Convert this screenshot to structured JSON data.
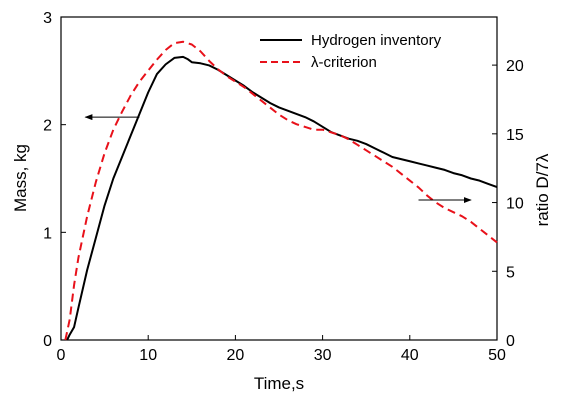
{
  "chart_data": {
    "type": "line",
    "xlabel": "Time,s",
    "ylabel_left": "Mass, kg",
    "ylabel_right": "ratio D/7λ",
    "xlim": [
      0,
      50
    ],
    "ylim_left": [
      0,
      3
    ],
    "ylim_right": [
      0,
      23.5
    ],
    "x_ticks": [
      0,
      10,
      20,
      30,
      40,
      50
    ],
    "y_left_ticks": [
      0,
      1,
      2,
      3
    ],
    "y_right_ticks": [
      0,
      5,
      10,
      15,
      20
    ],
    "grid": false,
    "legend_position": "top-right",
    "series": [
      {
        "name": "Hydrogen inventory",
        "axis": "left",
        "style": "solid",
        "color": "#000000",
        "x": [
          0.7,
          1.0,
          1.5,
          2,
          3,
          4,
          5,
          6,
          7,
          8,
          9,
          10,
          11,
          12,
          13,
          14,
          14.5,
          15,
          16,
          17,
          18,
          19,
          20,
          21,
          22,
          23,
          24,
          25,
          26,
          27,
          28,
          29,
          30,
          31,
          32,
          33,
          34,
          35,
          36,
          37,
          38,
          39,
          40,
          41,
          42,
          43,
          44,
          45,
          46,
          47,
          48,
          49,
          50
        ],
        "values": [
          0.0,
          0.05,
          0.12,
          0.3,
          0.65,
          0.95,
          1.25,
          1.5,
          1.7,
          1.9,
          2.1,
          2.3,
          2.47,
          2.56,
          2.62,
          2.63,
          2.61,
          2.58,
          2.57,
          2.55,
          2.51,
          2.46,
          2.41,
          2.36,
          2.3,
          2.25,
          2.2,
          2.16,
          2.13,
          2.1,
          2.07,
          2.03,
          1.98,
          1.93,
          1.9,
          1.87,
          1.85,
          1.82,
          1.78,
          1.74,
          1.7,
          1.68,
          1.66,
          1.64,
          1.62,
          1.6,
          1.58,
          1.55,
          1.53,
          1.5,
          1.48,
          1.45,
          1.42
        ]
      },
      {
        "name": "λ-criterion",
        "axis": "right",
        "style": "dashed",
        "color": "#e8111a",
        "x": [
          0.5,
          1.0,
          1.5,
          2,
          3,
          4,
          5,
          6,
          7,
          8,
          9,
          10,
          11,
          12,
          13,
          14,
          15,
          16,
          17,
          18,
          19,
          20,
          21,
          22,
          23,
          24,
          25,
          26,
          27,
          28,
          29,
          30,
          31,
          32,
          33,
          34,
          35,
          36,
          37,
          38,
          39,
          40,
          41,
          42,
          43,
          44,
          45,
          46,
          47,
          48,
          49,
          50
        ],
        "values": [
          0.0,
          1.5,
          4.0,
          6.0,
          9.0,
          11.5,
          13.6,
          15.3,
          16.6,
          17.8,
          18.8,
          19.6,
          20.4,
          21.1,
          21.6,
          21.7,
          21.5,
          21.0,
          20.3,
          19.7,
          19.2,
          18.8,
          18.4,
          17.9,
          17.4,
          16.9,
          16.4,
          16.0,
          15.7,
          15.5,
          15.3,
          15.3,
          15.1,
          14.9,
          14.6,
          14.2,
          13.8,
          13.4,
          13.0,
          12.6,
          12.1,
          11.6,
          11.1,
          10.5,
          10.0,
          9.6,
          9.3,
          9.0,
          8.6,
          8.1,
          7.6,
          7.1
        ]
      }
    ],
    "arrows": [
      {
        "points_to": "left",
        "x_from": 9.0,
        "x_to": 2.8,
        "y_left": 2.07
      },
      {
        "points_to": "right",
        "x_from": 41.0,
        "x_to": 47.0,
        "y_left": 1.3
      }
    ]
  }
}
